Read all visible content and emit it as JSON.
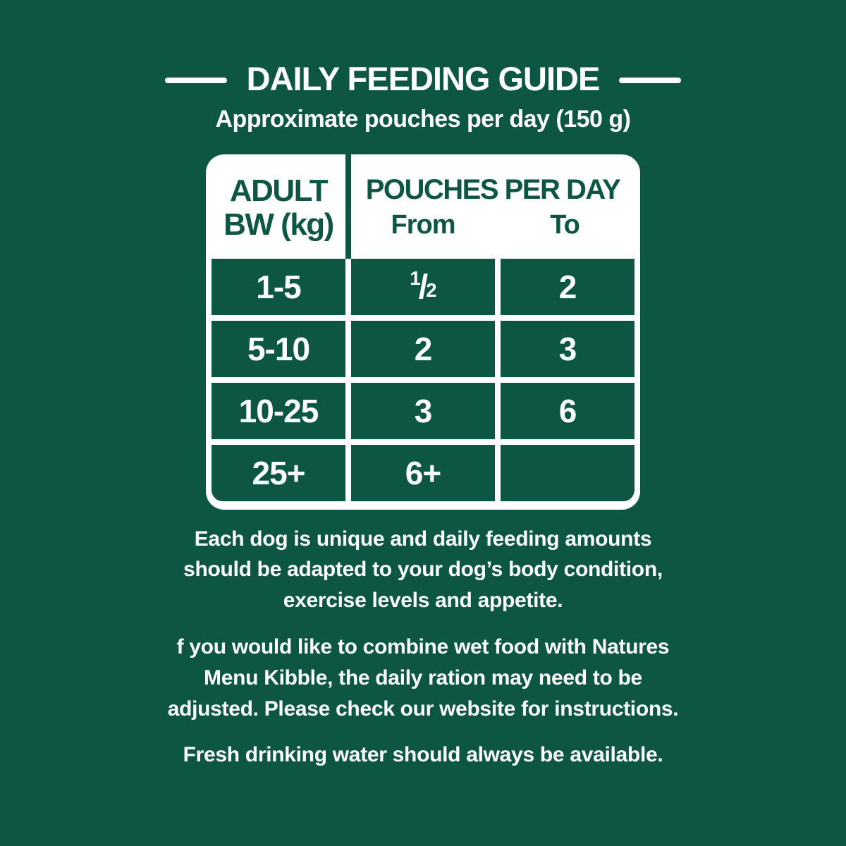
{
  "colors": {
    "background_green": "#0D5644",
    "text_white": "#FFFFFF"
  },
  "header": {
    "title": "DAILY FEEDING GUIDE",
    "subtitle": "Approximate pouches per day (150 g)"
  },
  "feeding_table": {
    "weight_header": {
      "line1": "ADULT",
      "line2": "BW (kg)"
    },
    "pouches_header": "POUCHES PER DAY",
    "from_label": "From",
    "to_label": "To",
    "rows": [
      {
        "bw": "1-5",
        "from": "1/2",
        "to": "2"
      },
      {
        "bw": "5-10",
        "from": "2",
        "to": "3"
      },
      {
        "bw": "10-25",
        "from": "3",
        "to": "6"
      },
      {
        "bw": "25+",
        "from": "6+",
        "to": ""
      }
    ]
  },
  "notes": [
    {
      "lines": [
        "Each dog is unique and daily feeding amounts",
        "should be adapted to your dog’s body condition,",
        "exercise levels and appetite."
      ]
    },
    {
      "lines": [
        "f you would like to combine wet food with Natures",
        "Menu Kibble, the daily ration may need to be",
        "adjusted. Please check our website for instructions."
      ]
    },
    {
      "lines": [
        "Fresh drinking water should always be available."
      ]
    }
  ]
}
